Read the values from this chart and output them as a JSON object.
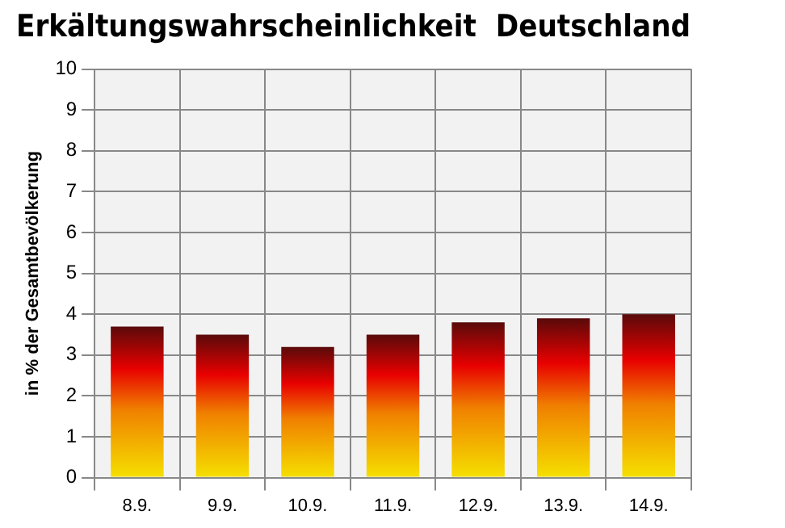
{
  "chart_data": {
    "type": "bar",
    "title": "Erkältungswahrscheinlichkeit  Deutschland",
    "ylabel": "in % der Gesamtbevölkerung",
    "categories": [
      "8.9.",
      "9.9.",
      "10.9.",
      "11.9.",
      "12.9.",
      "13.9.",
      "14.9."
    ],
    "values": [
      3.7,
      3.5,
      3.2,
      3.5,
      3.8,
      3.9,
      4.0
    ],
    "color": "#e80000",
    "ylim": [
      0,
      10
    ],
    "yticks": [
      0,
      1,
      2,
      3,
      4,
      5,
      6,
      7,
      8,
      9,
      10
    ],
    "grid": true
  }
}
